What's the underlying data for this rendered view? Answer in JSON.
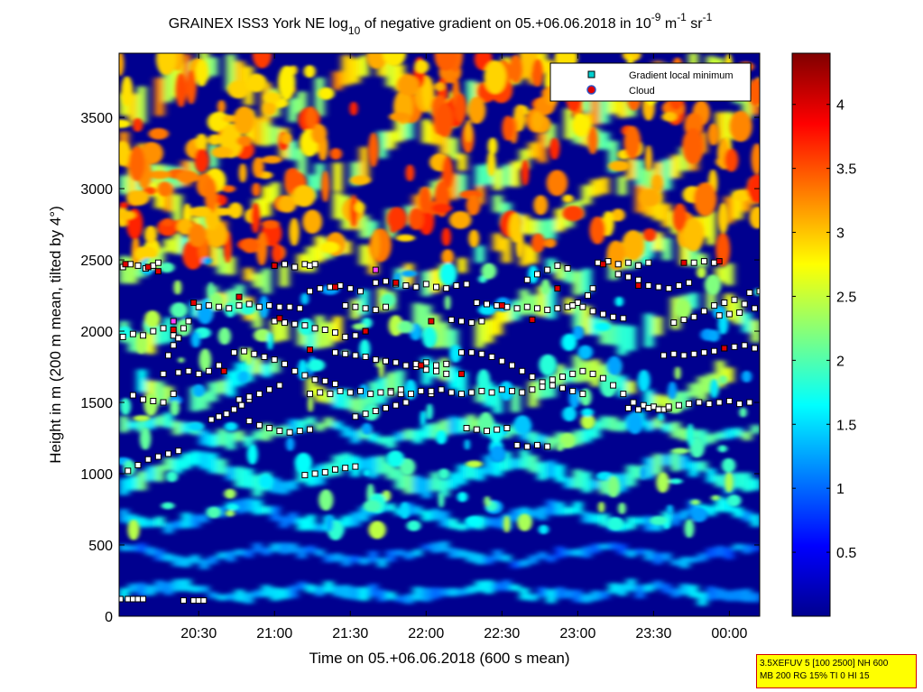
{
  "chart_data": {
    "type": "heatmap",
    "title": {
      "prefix": "GRAINEX ISS3 York NE log",
      "sub": "10",
      "mid": " of negative gradient on 05.+06.06.2018 in 10",
      "exp1": "-9",
      "unit1": " m",
      "exp2": "-1",
      "unit2": " sr",
      "exp3": "-1"
    },
    "xlabel": "Time on 05.+06.06.2018 (600 s mean)",
    "ylabel": "Height in m (200 m mean, tilted by 4°)",
    "x_ticks": [
      {
        "minutes": 30,
        "label": "20:30"
      },
      {
        "minutes": 60,
        "label": "21:00"
      },
      {
        "minutes": 90,
        "label": "21:30"
      },
      {
        "minutes": 120,
        "label": "22:00"
      },
      {
        "minutes": 150,
        "label": "22:30"
      },
      {
        "minutes": 180,
        "label": "23:00"
      },
      {
        "minutes": 210,
        "label": "23:30"
      },
      {
        "minutes": 240,
        "label": "00:00"
      }
    ],
    "x_range_minutes_after_2000": [
      -1.5,
      252
    ],
    "ylim": [
      0,
      3950
    ],
    "y_ticks": [
      0,
      500,
      1000,
      1500,
      2000,
      2500,
      3000,
      3500
    ],
    "colorbar": {
      "range": [
        0,
        4.4
      ],
      "ticks": [
        {
          "value": 0.5,
          "label": "0.5"
        },
        {
          "value": 1,
          "label": "1"
        },
        {
          "value": 1.5,
          "label": "1.5"
        },
        {
          "value": 2,
          "label": "2"
        },
        {
          "value": 2.5,
          "label": "2.5"
        },
        {
          "value": 3,
          "label": "3"
        },
        {
          "value": 3.5,
          "label": "3.5"
        },
        {
          "value": 4,
          "label": "4"
        }
      ],
      "colormap": "jet"
    },
    "legend": {
      "placement": "top-right",
      "entries": [
        {
          "label": "Gradient local minimum",
          "color": "#00d0d0",
          "marker": "square"
        },
        {
          "label": "Cloud",
          "color": "#e00000",
          "marker": "circle",
          "edge": "#3050c0"
        }
      ]
    },
    "gradient_minimum_layers": [
      {
        "t": [
          0,
          4,
          8,
          12,
          16,
          20,
          22
        ],
        "h": [
          1960,
          1980,
          1970,
          2000,
          2020,
          1970,
          1950
        ]
      },
      {
        "t": [
          0,
          3,
          6,
          9,
          12,
          14
        ],
        "h": [
          2450,
          2470,
          2460,
          2440,
          2460,
          2480
        ]
      },
      {
        "t": [
          4,
          8,
          12,
          16,
          20
        ],
        "h": [
          1550,
          1520,
          1510,
          1500,
          1560
        ]
      },
      {
        "t": [
          16,
          18,
          20,
          22,
          24,
          26
        ],
        "h": [
          1700,
          1830,
          1900,
          1950,
          2020,
          2070
        ]
      },
      {
        "t": [
          22,
          26,
          30,
          34,
          38
        ],
        "h": [
          1710,
          1720,
          1700,
          1720,
          1760
        ]
      },
      {
        "t": [
          30,
          34,
          38,
          42,
          46,
          50,
          54,
          58,
          62,
          66,
          70
        ],
        "h": [
          2170,
          2180,
          2170,
          2160,
          2180,
          2190,
          2170,
          2180,
          2170,
          2170,
          2160
        ]
      },
      {
        "t": [
          35,
          38,
          41,
          44,
          47,
          50
        ],
        "h": [
          1380,
          1400,
          1420,
          1450,
          1480,
          1520
        ]
      },
      {
        "t": [
          46,
          50,
          54,
          58,
          62
        ],
        "h": [
          1520,
          1540,
          1560,
          1590,
          1620
        ]
      },
      {
        "t": [
          44,
          48,
          52,
          56,
          60,
          64,
          68,
          72,
          76,
          80,
          84
        ],
        "h": [
          1850,
          1860,
          1840,
          1820,
          1800,
          1770,
          1720,
          1690,
          1660,
          1650,
          1630
        ]
      },
      {
        "t": [
          50,
          54,
          58,
          62,
          66,
          70,
          74
        ],
        "h": [
          1370,
          1340,
          1320,
          1300,
          1290,
          1300,
          1310
        ]
      },
      {
        "t": [
          60,
          64,
          68,
          72,
          74,
          76
        ],
        "h": [
          2460,
          2470,
          2450,
          2470,
          2460,
          2470
        ]
      },
      {
        "t": [
          60,
          64,
          68,
          72,
          76,
          80,
          84,
          88,
          92,
          96
        ],
        "h": [
          2070,
          2060,
          2050,
          2040,
          2020,
          2010,
          1990,
          1960,
          1970,
          2000
        ]
      },
      {
        "t": [
          72,
          76,
          80,
          84,
          88,
          92
        ],
        "h": [
          990,
          1000,
          1010,
          1030,
          1040,
          1050
        ]
      },
      {
        "t": [
          74,
          78,
          82,
          86,
          90,
          94,
          98,
          102,
          106,
          110
        ],
        "h": [
          1560,
          1570,
          1560,
          1580,
          1570,
          1580,
          1560,
          1570,
          1580,
          1560
        ]
      },
      {
        "t": [
          74,
          78,
          82,
          86,
          90,
          94
        ],
        "h": [
          2280,
          2300,
          2310,
          2320,
          2300,
          2280
        ]
      },
      {
        "t": [
          84,
          88,
          92,
          96,
          100,
          104,
          108,
          112,
          116,
          120,
          124,
          128
        ],
        "h": [
          1850,
          1840,
          1830,
          1820,
          1800,
          1790,
          1780,
          1760,
          1750,
          1730,
          1720,
          1700
        ]
      },
      {
        "t": [
          88,
          92,
          96,
          100,
          104
        ],
        "h": [
          2180,
          2170,
          2160,
          2150,
          2170
        ]
      },
      {
        "t": [
          92,
          96,
          100,
          104,
          108,
          112
        ],
        "h": [
          1400,
          1420,
          1440,
          1460,
          1480,
          1500
        ]
      },
      {
        "t": [
          100,
          104,
          108,
          112,
          116,
          120,
          124,
          128,
          132,
          136
        ],
        "h": [
          2340,
          2350,
          2330,
          2320,
          2310,
          2330,
          2310,
          2300,
          2320,
          2330
        ]
      },
      {
        "t": [
          106,
          110,
          114,
          118,
          122
        ],
        "h": [
          1570,
          1590,
          1560,
          1580,
          1560
        ]
      },
      {
        "t": [
          116,
          120,
          124,
          128
        ],
        "h": [
          1770,
          1780,
          1760,
          1770
        ]
      },
      {
        "t": [
          122,
          126,
          130,
          134,
          138,
          142,
          146
        ],
        "h": [
          1580,
          1590,
          1570,
          1560,
          1570,
          1580,
          1570
        ]
      },
      {
        "t": [
          130,
          134,
          138,
          142
        ],
        "h": [
          2080,
          2070,
          2060,
          2070
        ]
      },
      {
        "t": [
          134,
          138,
          142,
          146,
          150,
          154,
          158,
          162,
          166
        ],
        "h": [
          1850,
          1850,
          1840,
          1820,
          1790,
          1760,
          1720,
          1680,
          1640
        ]
      },
      {
        "t": [
          136,
          140,
          144,
          148,
          152
        ],
        "h": [
          1320,
          1310,
          1300,
          1310,
          1320
        ]
      },
      {
        "t": [
          140,
          144,
          148,
          152,
          156,
          160,
          164,
          168,
          172,
          176,
          180,
          184,
          186
        ],
        "h": [
          2200,
          2190,
          2180,
          2170,
          2160,
          2170,
          2160,
          2150,
          2160,
          2170,
          2200,
          2250,
          2300
        ]
      },
      {
        "t": [
          150,
          154,
          158,
          162,
          166,
          170,
          174,
          178,
          182
        ],
        "h": [
          1590,
          1580,
          1570,
          1590,
          1610,
          1620,
          1600,
          1580,
          1560
        ]
      },
      {
        "t": [
          156,
          160,
          164,
          168
        ],
        "h": [
          1200,
          1190,
          1200,
          1190
        ]
      },
      {
        "t": [
          160,
          164,
          168,
          172,
          176
        ],
        "h": [
          2360,
          2400,
          2430,
          2460,
          2440
        ]
      },
      {
        "t": [
          170,
          174,
          178,
          182,
          186,
          190,
          194,
          198,
          202,
          206,
          210,
          214,
          216
        ],
        "h": [
          1660,
          1680,
          1700,
          1720,
          1700,
          1670,
          1620,
          1560,
          1500,
          1480,
          1470,
          1450,
          1460
        ]
      },
      {
        "t": [
          178,
          182,
          186,
          190,
          194,
          198
        ],
        "h": [
          2180,
          2170,
          2140,
          2120,
          2100,
          2090
        ]
      },
      {
        "t": [
          188,
          192,
          196,
          200,
          204,
          208
        ],
        "h": [
          2480,
          2490,
          2470,
          2480,
          2460,
          2480
        ]
      },
      {
        "t": [
          196,
          200,
          204,
          208,
          212,
          216,
          220,
          224
        ],
        "h": [
          2400,
          2380,
          2360,
          2320,
          2310,
          2300,
          2320,
          2340
        ]
      },
      {
        "t": [
          200,
          204,
          208,
          212,
          216,
          220,
          224,
          228,
          232,
          236,
          240,
          244,
          248
        ],
        "h": [
          1460,
          1450,
          1460,
          1450,
          1470,
          1480,
          1490,
          1500,
          1490,
          1500,
          1510,
          1490,
          1500
        ]
      },
      {
        "t": [
          214,
          218,
          222,
          226,
          230,
          234,
          238,
          242,
          246,
          250
        ],
        "h": [
          1830,
          1840,
          1830,
          1840,
          1850,
          1860,
          1880,
          1890,
          1900,
          1880
        ]
      },
      {
        "t": [
          218,
          222,
          226,
          230,
          234,
          238,
          242,
          246,
          250
        ],
        "h": [
          2060,
          2080,
          2100,
          2140,
          2180,
          2200,
          2220,
          2190,
          2160
        ]
      },
      {
        "t": [
          226,
          230,
          234
        ],
        "h": [
          2480,
          2490,
          2480
        ]
      },
      {
        "t": [
          236,
          240,
          244,
          248,
          252
        ],
        "h": [
          2110,
          2120,
          2130,
          2270,
          2280
        ]
      },
      {
        "t": [
          -1,
          2,
          4,
          6,
          8
        ],
        "h": [
          120,
          120,
          120,
          120,
          120
        ]
      },
      {
        "t": [
          24,
          28,
          30,
          32
        ],
        "h": [
          110,
          110,
          110,
          110
        ]
      },
      {
        "t": [
          2,
          6,
          10,
          14,
          18,
          22
        ],
        "h": [
          1020,
          1060,
          1100,
          1120,
          1140,
          1160
        ]
      }
    ],
    "cloud_points": [
      {
        "t": 1,
        "h": 2470
      },
      {
        "t": 10,
        "h": 2450
      },
      {
        "t": 14,
        "h": 2420
      },
      {
        "t": 20,
        "h": 2010
      },
      {
        "t": 28,
        "h": 2200
      },
      {
        "t": 40,
        "h": 1720
      },
      {
        "t": 46,
        "h": 2240
      },
      {
        "t": 60,
        "h": 2460
      },
      {
        "t": 62,
        "h": 2090
      },
      {
        "t": 74,
        "h": 1870
      },
      {
        "t": 84,
        "h": 2310
      },
      {
        "t": 96,
        "h": 2000
      },
      {
        "t": 108,
        "h": 2340
      },
      {
        "t": 118,
        "h": 1760
      },
      {
        "t": 122,
        "h": 2070
      },
      {
        "t": 134,
        "h": 1700
      },
      {
        "t": 150,
        "h": 2180
      },
      {
        "t": 162,
        "h": 2080
      },
      {
        "t": 172,
        "h": 2300
      },
      {
        "t": 190,
        "h": 2470
      },
      {
        "t": 204,
        "h": 2320
      },
      {
        "t": 222,
        "h": 2480
      },
      {
        "t": 236,
        "h": 2490
      },
      {
        "t": 238,
        "h": 1880
      }
    ],
    "magenta_points": [
      {
        "t": 20,
        "h": 2070
      },
      {
        "t": 100,
        "h": 2430
      }
    ]
  },
  "annotation": {
    "line1": "3.5XEFUV 5 [100 2500] NH 600",
    "line2": "MB 200 RG 15% TI 0 HI 15"
  }
}
